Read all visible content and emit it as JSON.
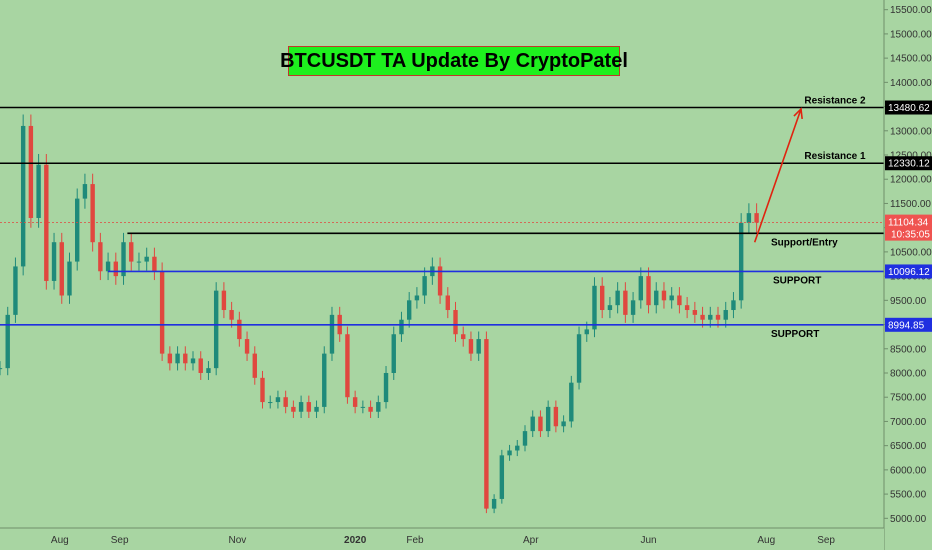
{
  "chart_data": {
    "type": "candlestick",
    "title": "BTCUSDT TA Update By CryptoPatel",
    "colors": {
      "background": "#a8d5a2",
      "up": "#1f8a7a",
      "down": "#e0473f",
      "support": "#1f2fe0",
      "resistance": "#000000",
      "arrow": "#e0230f",
      "title_bg": "#1ef01e"
    },
    "y_axis": {
      "min": 4800,
      "max": 15700,
      "ticks": [
        5000,
        5500,
        6000,
        6500,
        7000,
        7500,
        8000,
        8500,
        9000,
        9500,
        10000,
        10500,
        11000,
        11500,
        12000,
        12500,
        13000,
        13500,
        14000,
        14500,
        15000,
        15500
      ],
      "tick_labels": [
        "5000.00",
        "5500.00",
        "6000.00",
        "6500.00",
        "7000.00",
        "7500.00",
        "8000.00",
        "8500.00",
        "9000.00",
        "9500.00",
        "10000.00",
        "10500.00",
        "11000.00",
        "11500.00",
        "12000.00",
        "12500.00",
        "13000.00",
        "13500.00",
        "14000.00",
        "14500.00",
        "15000.00",
        "15500.00"
      ]
    },
    "x_axis": {
      "labels": [
        {
          "text": "Aug",
          "day": 31
        },
        {
          "text": "Sep",
          "day": 62
        },
        {
          "text": "Nov",
          "day": 123
        },
        {
          "text": "2020",
          "day": 184
        },
        {
          "text": "Feb",
          "day": 215
        },
        {
          "text": "Apr",
          "day": 275
        },
        {
          "text": "Jun",
          "day": 336
        },
        {
          "text": "Aug",
          "day": 397
        },
        {
          "text": "Sep",
          "day": 428
        }
      ],
      "day_range": [
        0,
        458
      ]
    },
    "levels": [
      {
        "name": "Resistance 2",
        "value": 13480.62,
        "label": "13480.62",
        "kind": "resistance"
      },
      {
        "name": "Resistance 1",
        "value": 12330.12,
        "label": "12330.12",
        "kind": "resistance"
      },
      {
        "name": "Support/Entry",
        "value": 10882.74,
        "label": "10882.74",
        "kind": "entry"
      },
      {
        "name": "SUPPORT",
        "value": 10096.12,
        "label": "10096.12",
        "kind": "support"
      },
      {
        "name": "SUPPORT",
        "value": 8994.85,
        "label": "8994.85",
        "kind": "support"
      }
    ],
    "last_price": {
      "value": 11104.34,
      "label": "11104.34",
      "countdown": "10:35:05"
    },
    "arrow": {
      "from_day": 391,
      "from_value": 10700,
      "to_day": 415,
      "to_value": 13450
    },
    "series": [
      {
        "x": 0,
        "y": 8100
      },
      {
        "x": 4,
        "y": 9200
      },
      {
        "x": 8,
        "y": 10200
      },
      {
        "x": 12,
        "y": 13100
      },
      {
        "x": 16,
        "y": 11200
      },
      {
        "x": 20,
        "y": 12300
      },
      {
        "x": 24,
        "y": 9900
      },
      {
        "x": 28,
        "y": 10700
      },
      {
        "x": 32,
        "y": 9600
      },
      {
        "x": 36,
        "y": 10300
      },
      {
        "x": 40,
        "y": 11600
      },
      {
        "x": 44,
        "y": 11900
      },
      {
        "x": 48,
        "y": 10700
      },
      {
        "x": 52,
        "y": 10100
      },
      {
        "x": 56,
        "y": 10300
      },
      {
        "x": 60,
        "y": 10000
      },
      {
        "x": 64,
        "y": 10700
      },
      {
        "x": 68,
        "y": 10300
      },
      {
        "x": 72,
        "y": 10300
      },
      {
        "x": 76,
        "y": 10400
      },
      {
        "x": 80,
        "y": 10100
      },
      {
        "x": 84,
        "y": 8400
      },
      {
        "x": 88,
        "y": 8200
      },
      {
        "x": 92,
        "y": 8400
      },
      {
        "x": 96,
        "y": 8200
      },
      {
        "x": 100,
        "y": 8300
      },
      {
        "x": 104,
        "y": 8000
      },
      {
        "x": 108,
        "y": 8100
      },
      {
        "x": 112,
        "y": 9700
      },
      {
        "x": 116,
        "y": 9300
      },
      {
        "x": 120,
        "y": 9100
      },
      {
        "x": 124,
        "y": 8700
      },
      {
        "x": 128,
        "y": 8400
      },
      {
        "x": 132,
        "y": 7900
      },
      {
        "x": 136,
        "y": 7400
      },
      {
        "x": 140,
        "y": 7400
      },
      {
        "x": 144,
        "y": 7500
      },
      {
        "x": 148,
        "y": 7300
      },
      {
        "x": 152,
        "y": 7200
      },
      {
        "x": 156,
        "y": 7400
      },
      {
        "x": 160,
        "y": 7200
      },
      {
        "x": 164,
        "y": 7300
      },
      {
        "x": 168,
        "y": 8400
      },
      {
        "x": 172,
        "y": 9200
      },
      {
        "x": 176,
        "y": 8800
      },
      {
        "x": 180,
        "y": 7500
      },
      {
        "x": 184,
        "y": 7300
      },
      {
        "x": 188,
        "y": 7300
      },
      {
        "x": 192,
        "y": 7200
      },
      {
        "x": 196,
        "y": 7400
      },
      {
        "x": 200,
        "y": 8000
      },
      {
        "x": 204,
        "y": 8800
      },
      {
        "x": 208,
        "y": 9100
      },
      {
        "x": 212,
        "y": 9500
      },
      {
        "x": 216,
        "y": 9600
      },
      {
        "x": 220,
        "y": 10000
      },
      {
        "x": 224,
        "y": 10200
      },
      {
        "x": 228,
        "y": 9600
      },
      {
        "x": 232,
        "y": 9300
      },
      {
        "x": 236,
        "y": 8800
      },
      {
        "x": 240,
        "y": 8700
      },
      {
        "x": 244,
        "y": 8400
      },
      {
        "x": 248,
        "y": 8700
      },
      {
        "x": 252,
        "y": 5200
      },
      {
        "x": 256,
        "y": 5400
      },
      {
        "x": 260,
        "y": 6300
      },
      {
        "x": 264,
        "y": 6400
      },
      {
        "x": 268,
        "y": 6500
      },
      {
        "x": 272,
        "y": 6800
      },
      {
        "x": 276,
        "y": 7100
      },
      {
        "x": 280,
        "y": 6800
      },
      {
        "x": 284,
        "y": 7300
      },
      {
        "x": 288,
        "y": 6900
      },
      {
        "x": 292,
        "y": 7000
      },
      {
        "x": 296,
        "y": 7800
      },
      {
        "x": 300,
        "y": 8800
      },
      {
        "x": 304,
        "y": 8900
      },
      {
        "x": 308,
        "y": 9800
      },
      {
        "x": 312,
        "y": 9300
      },
      {
        "x": 316,
        "y": 9400
      },
      {
        "x": 320,
        "y": 9700
      },
      {
        "x": 324,
        "y": 9200
      },
      {
        "x": 328,
        "y": 9500
      },
      {
        "x": 332,
        "y": 10000
      },
      {
        "x": 336,
        "y": 9400
      },
      {
        "x": 340,
        "y": 9700
      },
      {
        "x": 344,
        "y": 9500
      },
      {
        "x": 348,
        "y": 9600
      },
      {
        "x": 352,
        "y": 9400
      },
      {
        "x": 356,
        "y": 9300
      },
      {
        "x": 360,
        "y": 9200
      },
      {
        "x": 364,
        "y": 9100
      },
      {
        "x": 368,
        "y": 9200
      },
      {
        "x": 372,
        "y": 9100
      },
      {
        "x": 376,
        "y": 9300
      },
      {
        "x": 380,
        "y": 9500
      },
      {
        "x": 384,
        "y": 11100
      },
      {
        "x": 388,
        "y": 11300
      },
      {
        "x": 392,
        "y": 11104
      }
    ]
  }
}
